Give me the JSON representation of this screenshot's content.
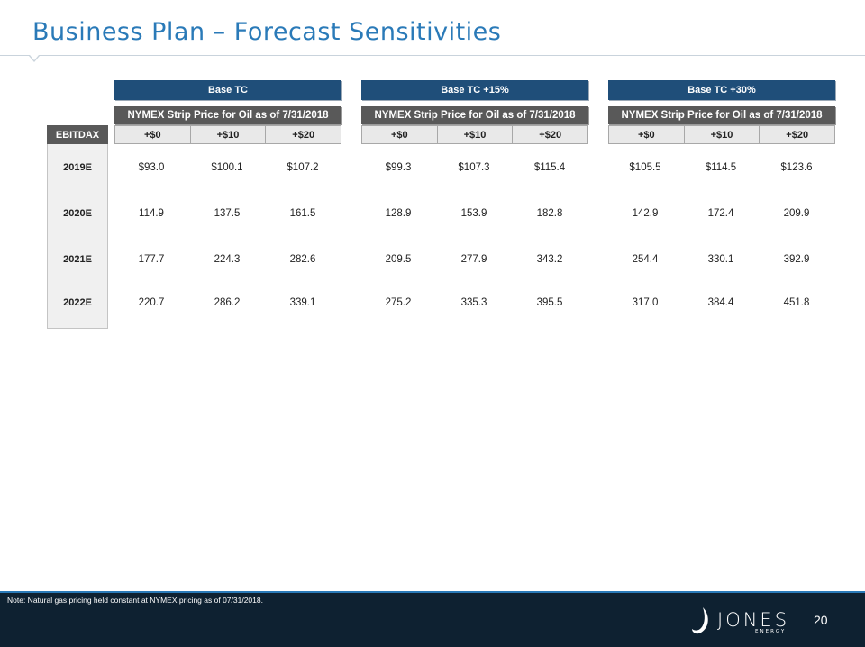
{
  "title": "Business Plan – Forecast Sensitivities",
  "groups": [
    {
      "header": "Base TC",
      "subheader": "NYMEX Strip Price for Oil as of 7/31/2018",
      "prices": [
        "+$0",
        "+$10",
        "+$20"
      ]
    },
    {
      "header": "Base TC +15%",
      "subheader": "NYMEX Strip Price for Oil as of 7/31/2018",
      "prices": [
        "+$0",
        "+$10",
        "+$20"
      ]
    },
    {
      "header": "Base TC +30%",
      "subheader": "NYMEX Strip Price for Oil as of 7/31/2018",
      "prices": [
        "+$0",
        "+$10",
        "+$20"
      ]
    }
  ],
  "row_header": "EBITDAX",
  "rows": [
    {
      "label": "2019E",
      "values": [
        "$93.0",
        "$100.1",
        "$107.2",
        "$99.3",
        "$107.3",
        "$115.4",
        "$105.5",
        "$114.5",
        "$123.6"
      ]
    },
    {
      "label": "2020E",
      "values": [
        "114.9",
        "137.5",
        "161.5",
        "128.9",
        "153.9",
        "182.8",
        "142.9",
        "172.4",
        "209.9"
      ]
    },
    {
      "label": "2021E",
      "values": [
        "177.7",
        "224.3",
        "282.6",
        "209.5",
        "277.9",
        "343.2",
        "254.4",
        "330.1",
        "392.9"
      ]
    },
    {
      "label": "2022E",
      "values": [
        "220.7",
        "286.2",
        "339.1",
        "275.2",
        "335.3",
        "395.5",
        "317.0",
        "384.4",
        "451.8"
      ]
    }
  ],
  "footer": {
    "note": "Note: Natural gas pricing held constant at NYMEX pricing as of 07/31/2018.",
    "logo_text": "JONES",
    "logo_subtext": "ENERGY",
    "page_number": "20"
  }
}
